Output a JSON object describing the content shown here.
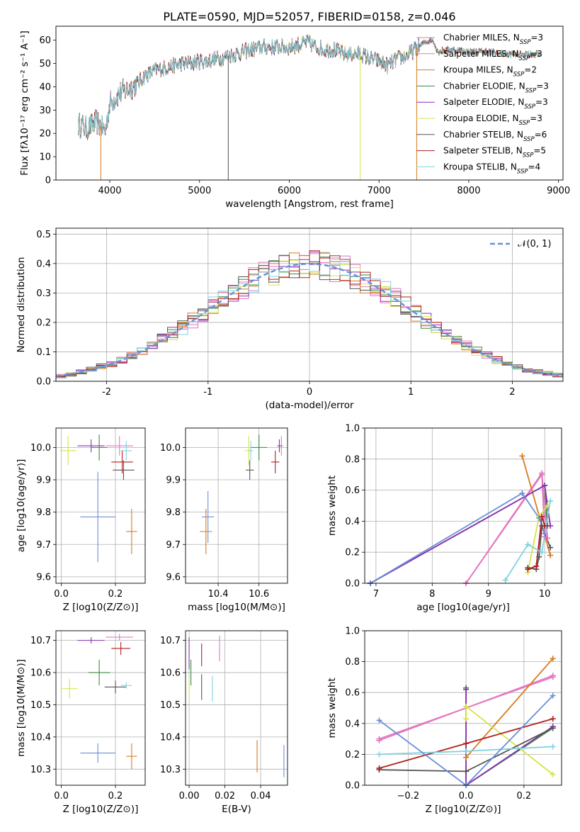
{
  "title": "PLATE=0590, MJD=52057, FIBERID=0158, z=0.046",
  "colors": {
    "Chabrier MILES": "#e377c2",
    "Salpeter MILES": "#e377c2",
    "Kroupa MILES": "#d97a1f",
    "Chabrier ELODIE": "#3a8a3a",
    "Salpeter ELODIE": "#8e2fb5",
    "Kroupa ELODIE": "#d5e34a",
    "Chabrier STELIB": "#555555",
    "Salpeter STELIB": "#b11e1e",
    "Kroupa STELIB": "#7fd3de",
    "normal": "#6a8fd8"
  },
  "chart_data": [
    {
      "type": "line",
      "id": "spectrum",
      "xlabel": "wavelength [Angstrom, rest frame]",
      "ylabel": "Flux [fλ10⁻¹⁷ erg cm⁻² s⁻¹ A⁻¹]",
      "xlim": [
        3400,
        9050
      ],
      "ylim": [
        0,
        66
      ],
      "xticks": [
        4000,
        5000,
        6000,
        7000,
        8000,
        9000
      ],
      "yticks": [
        0,
        10,
        20,
        30,
        40,
        50,
        60
      ],
      "grid": false,
      "legend_position": "right",
      "legend": [
        {
          "name": "Chabrier MILES",
          "nssp": "3"
        },
        {
          "name": "Salpeter MILES",
          "nssp": "3"
        },
        {
          "name": "Kroupa MILES",
          "nssp": "2"
        },
        {
          "name": "Chabrier ELODIE",
          "nssp": "3"
        },
        {
          "name": "Salpeter ELODIE",
          "nssp": "3"
        },
        {
          "name": "Kroupa ELODIE",
          "nssp": "3"
        },
        {
          "name": "Chabrier STELIB",
          "nssp": "6"
        },
        {
          "name": "Salpeter STELIB",
          "nssp": "5"
        },
        {
          "name": "Kroupa STELIB",
          "nssp": "4"
        }
      ],
      "continuum": [
        [
          3650,
          24
        ],
        [
          3750,
          22
        ],
        [
          3850,
          25
        ],
        [
          3950,
          21
        ],
        [
          4000,
          33
        ],
        [
          4100,
          37
        ],
        [
          4200,
          39
        ],
        [
          4300,
          41
        ],
        [
          4400,
          45
        ],
        [
          4500,
          47
        ],
        [
          4600,
          48
        ],
        [
          4700,
          49
        ],
        [
          4800,
          50
        ],
        [
          4900,
          50
        ],
        [
          5000,
          51
        ],
        [
          5100,
          51
        ],
        [
          5200,
          52
        ],
        [
          5300,
          53
        ],
        [
          5400,
          54
        ],
        [
          5500,
          55
        ],
        [
          5600,
          56
        ],
        [
          5700,
          57
        ],
        [
          5800,
          57
        ],
        [
          5900,
          57
        ],
        [
          6000,
          57
        ],
        [
          6100,
          58
        ],
        [
          6200,
          59
        ],
        [
          6300,
          57
        ],
        [
          6400,
          56
        ],
        [
          6500,
          56
        ],
        [
          6600,
          54
        ],
        [
          6700,
          54
        ],
        [
          6800,
          54
        ],
        [
          6900,
          52
        ],
        [
          7000,
          51
        ],
        [
          7100,
          49
        ],
        [
          7200,
          52
        ],
        [
          7300,
          53
        ],
        [
          7400,
          56
        ],
        [
          7500,
          59
        ],
        [
          7600,
          60
        ],
        [
          7650,
          55
        ],
        [
          7800,
          56
        ],
        [
          8000,
          55
        ],
        [
          8200,
          55
        ],
        [
          8400,
          54
        ],
        [
          8600,
          54
        ],
        [
          8800,
          54
        ]
      ],
      "spikes": [
        {
          "x": 3900,
          "series": "Kroupa MILES"
        },
        {
          "x": 5320,
          "series": "Chabrier STELIB"
        },
        {
          "x": 6790,
          "series": "Kroupa ELODIE"
        },
        {
          "x": 7420,
          "series": "Kroupa MILES"
        }
      ]
    },
    {
      "type": "step",
      "id": "residuals",
      "xlabel": "(data-model)/error",
      "ylabel": "Normed distribution",
      "xlim": [
        -2.5,
        2.5
      ],
      "ylim": [
        0,
        0.52
      ],
      "xticks": [
        -2,
        -1,
        0,
        1,
        2
      ],
      "yticks": [
        0.0,
        0.1,
        0.2,
        0.3,
        0.4,
        0.5
      ],
      "grid": true,
      "legend_position": "top-right",
      "legend": [
        {
          "name": "𝒩(0, 1)",
          "style": "dashed"
        }
      ],
      "bin_width": 0.1,
      "normal_pdf": {
        "mean": 0,
        "sigma": 1
      }
    },
    {
      "type": "scatter",
      "id": "z-age",
      "xlabel": "Z [log10(Z/Z⊙)]",
      "ylabel": "age [log10(age/yr)]",
      "xlim": [
        -0.02,
        0.31
      ],
      "ylim": [
        9.58,
        10.06
      ],
      "xticks": [
        0.0,
        0.2
      ],
      "yticks": [
        9.6,
        9.7,
        9.8,
        9.9,
        10.0
      ],
      "grid": true,
      "points": [
        {
          "series": "Salpeter MILES",
          "x": 0.215,
          "y": 10.005,
          "xerr": 0.05,
          "yerr": 0.03
        },
        {
          "series": "Kroupa MILES",
          "x": 0.26,
          "y": 9.74,
          "xerr": 0.02,
          "yerr": 0.07
        },
        {
          "series": "Chabrier ELODIE",
          "x": 0.14,
          "y": 10.0,
          "xerr": 0.03,
          "yerr": 0.04
        },
        {
          "series": "Salpeter ELODIE",
          "x": 0.11,
          "y": 10.005,
          "xerr": 0.05,
          "yerr": 0.02
        },
        {
          "series": "Kroupa ELODIE",
          "x": 0.025,
          "y": 9.99,
          "xerr": 0.03,
          "yerr": 0.045
        },
        {
          "series": "Chabrier STELIB",
          "x": 0.23,
          "y": 9.93,
          "xerr": 0.04,
          "yerr": 0.03
        },
        {
          "series": "Salpeter STELIB",
          "x": 0.225,
          "y": 9.955,
          "xerr": 0.04,
          "yerr": 0.035
        },
        {
          "series": "Kroupa STELIB",
          "x": 0.24,
          "y": 9.99,
          "xerr": 0.02,
          "yerr": 0.03
        },
        {
          "series": "normal",
          "x": 0.135,
          "y": 9.785,
          "xerr": 0.065,
          "yerr": 0.14
        }
      ]
    },
    {
      "type": "scatter",
      "id": "mass-age",
      "xlabel": "mass [log10(M/M⊙)]",
      "ylabel": "",
      "xlim": [
        10.24,
        10.74
      ],
      "ylim": [
        9.58,
        10.06
      ],
      "xticks": [
        10.4,
        10.6
      ],
      "yticks": [
        9.6,
        9.7,
        9.8,
        9.9,
        10.0
      ],
      "grid": true,
      "points": [
        {
          "series": "Salpeter MILES",
          "x": 10.71,
          "y": 10.005,
          "xerr": 0.01,
          "yerr": 0.03
        },
        {
          "series": "Kroupa MILES",
          "x": 10.34,
          "y": 9.74,
          "xerr": 0.03,
          "yerr": 0.07
        },
        {
          "series": "Chabrier ELODIE",
          "x": 10.6,
          "y": 10.0,
          "xerr": 0.04,
          "yerr": 0.04
        },
        {
          "series": "Salpeter ELODIE",
          "x": 10.7,
          "y": 10.005,
          "xerr": 0.01,
          "yerr": 0.02
        },
        {
          "series": "Kroupa ELODIE",
          "x": 10.55,
          "y": 9.99,
          "xerr": 0.02,
          "yerr": 0.045
        },
        {
          "series": "Chabrier STELIB",
          "x": 10.555,
          "y": 9.93,
          "xerr": 0.02,
          "yerr": 0.03
        },
        {
          "series": "Salpeter STELIB",
          "x": 10.68,
          "y": 9.955,
          "xerr": 0.02,
          "yerr": 0.035
        },
        {
          "series": "Kroupa STELIB",
          "x": 10.56,
          "y": 9.99,
          "xerr": 0.01,
          "yerr": 0.03
        },
        {
          "series": "normal",
          "x": 10.35,
          "y": 9.785,
          "xerr": 0.03,
          "yerr": 0.08
        }
      ]
    },
    {
      "type": "line",
      "id": "age-weight",
      "xlabel": "age [log10(age/yr)]",
      "ylabel": "mass weight",
      "xlim": [
        6.8,
        10.3
      ],
      "ylim": [
        0,
        1.0
      ],
      "xticks": [
        7,
        8,
        9,
        10
      ],
      "yticks": [
        0.0,
        0.2,
        0.4,
        0.6,
        0.8,
        1.0
      ],
      "grid": true,
      "series": [
        {
          "name": "Chabrier MILES",
          "points": [
            [
              8.6,
              0.0
            ],
            [
              9.95,
              0.7
            ],
            [
              10.0,
              0.3
            ]
          ]
        },
        {
          "name": "Salpeter MILES",
          "points": [
            [
              8.6,
              0.0
            ],
            [
              9.95,
              0.71
            ],
            [
              10.05,
              0.29
            ]
          ]
        },
        {
          "name": "Kroupa MILES",
          "points": [
            [
              9.6,
              0.82
            ],
            [
              10.1,
              0.18
            ]
          ]
        },
        {
          "name": "Chabrier ELODIE",
          "points": [
            [
              6.9,
              0.0
            ],
            [
              10.0,
              0.63
            ],
            [
              10.05,
              0.37
            ]
          ]
        },
        {
          "name": "Salpeter ELODIE",
          "points": [
            [
              6.9,
              0.0
            ],
            [
              10.0,
              0.63
            ],
            [
              10.1,
              0.37
            ]
          ]
        },
        {
          "name": "Kroupa ELODIE",
          "points": [
            [
              9.7,
              0.07
            ],
            [
              9.9,
              0.43
            ],
            [
              10.05,
              0.5
            ]
          ]
        },
        {
          "name": "Chabrier STELIB",
          "points": [
            [
              9.7,
              0.1
            ],
            [
              9.85,
              0.09
            ],
            [
              9.9,
              0.17
            ],
            [
              9.95,
              0.37
            ],
            [
              10.1,
              0.23
            ]
          ]
        },
        {
          "name": "Salpeter STELIB",
          "points": [
            [
              9.7,
              0.09
            ],
            [
              9.85,
              0.11
            ],
            [
              9.95,
              0.43
            ],
            [
              10.0,
              0.37
            ]
          ]
        },
        {
          "name": "Kroupa STELIB",
          "points": [
            [
              9.3,
              0.02
            ],
            [
              9.7,
              0.25
            ],
            [
              9.95,
              0.2
            ],
            [
              10.1,
              0.53
            ]
          ]
        },
        {
          "name": "normal",
          "points": [
            [
              6.9,
              0.0
            ],
            [
              9.6,
              0.58
            ],
            [
              9.9,
              0.42
            ],
            [
              10.0,
              0.32
            ]
          ]
        }
      ]
    },
    {
      "type": "scatter",
      "id": "z-mass",
      "xlabel": "Z [log10(Z/Z⊙)]",
      "ylabel": "mass [log10(M/M⊙)]",
      "xlim": [
        -0.02,
        0.31
      ],
      "ylim": [
        10.25,
        10.73
      ],
      "xticks": [
        0.0,
        0.2
      ],
      "yticks": [
        10.3,
        10.4,
        10.5,
        10.6,
        10.7
      ],
      "grid": true,
      "points": [
        {
          "series": "Salpeter MILES",
          "x": 0.215,
          "y": 10.71,
          "xerr": 0.05,
          "yerr": 0.01
        },
        {
          "series": "Kroupa MILES",
          "x": 0.26,
          "y": 10.34,
          "xerr": 0.02,
          "yerr": 0.04
        },
        {
          "series": "Chabrier ELODIE",
          "x": 0.14,
          "y": 10.6,
          "xerr": 0.04,
          "yerr": 0.04
        },
        {
          "series": "Salpeter ELODIE",
          "x": 0.11,
          "y": 10.7,
          "xerr": 0.05,
          "yerr": 0.01
        },
        {
          "series": "Kroupa ELODIE",
          "x": 0.03,
          "y": 10.55,
          "xerr": 0.03,
          "yerr": 0.03
        },
        {
          "series": "Chabrier STELIB",
          "x": 0.2,
          "y": 10.555,
          "xerr": 0.04,
          "yerr": 0.02
        },
        {
          "series": "Salpeter STELIB",
          "x": 0.22,
          "y": 10.675,
          "xerr": 0.035,
          "yerr": 0.02
        },
        {
          "series": "Kroupa STELIB",
          "x": 0.24,
          "y": 10.56,
          "xerr": 0.02,
          "yerr": 0.01
        },
        {
          "series": "normal",
          "x": 0.135,
          "y": 10.35,
          "xerr": 0.065,
          "yerr": 0.03
        }
      ]
    },
    {
      "type": "scatter",
      "id": "ebv-mass",
      "xlabel": "E(B-V)",
      "ylabel": "",
      "xlim": [
        -0.002,
        0.055
      ],
      "ylim": [
        10.25,
        10.73
      ],
      "xticks": [
        0.0,
        0.02,
        0.04
      ],
      "yticks": [
        10.3,
        10.4,
        10.5,
        10.6,
        10.7
      ],
      "grid": true,
      "points": [
        {
          "series": "Salpeter MILES",
          "x": 0.017,
          "y": 10.675,
          "xerr": 0.0,
          "yerr": 0.04
        },
        {
          "series": "Kroupa MILES",
          "x": 0.038,
          "y": 10.34,
          "xerr": 0.0,
          "yerr": 0.05
        },
        {
          "series": "Chabrier ELODIE",
          "x": 0.001,
          "y": 10.6,
          "xerr": 0.0,
          "yerr": 0.04
        },
        {
          "series": "Salpeter ELODIE",
          "x": 0.0,
          "y": 10.66,
          "xerr": 0.0,
          "yerr": 0.05
        },
        {
          "series": "Kroupa ELODIE",
          "x": 0.0,
          "y": 10.55,
          "xerr": 0.0,
          "yerr": 0.03
        },
        {
          "series": "Chabrier STELIB",
          "x": 0.007,
          "y": 10.555,
          "xerr": 0.0,
          "yerr": 0.04
        },
        {
          "series": "Salpeter STELIB",
          "x": 0.007,
          "y": 10.655,
          "xerr": 0.0,
          "yerr": 0.035
        },
        {
          "series": "Kroupa STELIB",
          "x": 0.013,
          "y": 10.55,
          "xerr": 0.0,
          "yerr": 0.04
        },
        {
          "series": "normal",
          "x": 0.053,
          "y": 10.325,
          "xerr": 0.0,
          "yerr": 0.05
        }
      ]
    },
    {
      "type": "line",
      "id": "z-weight",
      "xlabel": "Z [log10(Z/Z⊙)]",
      "ylabel": "mass weight",
      "xlim": [
        -0.35,
        0.33
      ],
      "ylim": [
        0,
        1.0
      ],
      "xticks": [
        -0.2,
        0.0,
        0.2
      ],
      "yticks": [
        0.0,
        0.2,
        0.4,
        0.6,
        0.8,
        1.0
      ],
      "grid": true,
      "series": [
        {
          "name": "Chabrier MILES",
          "points": [
            [
              -0.3,
              0.29
            ],
            [
              0.3,
              0.71
            ]
          ]
        },
        {
          "name": "Salpeter MILES",
          "points": [
            [
              -0.3,
              0.3
            ],
            [
              0.3,
              0.7
            ]
          ]
        },
        {
          "name": "Kroupa MILES",
          "points": [
            [
              0.0,
              0.18
            ],
            [
              0.3,
              0.82
            ]
          ]
        },
        {
          "name": "Chabrier ELODIE",
          "points": [
            [
              0.0,
              0.63
            ],
            [
              0.0,
              0.0
            ],
            [
              0.3,
              0.37
            ]
          ]
        },
        {
          "name": "Salpeter ELODIE",
          "points": [
            [
              0.0,
              0.62
            ],
            [
              0.0,
              0.0
            ],
            [
              0.3,
              0.38
            ]
          ]
        },
        {
          "name": "Kroupa ELODIE",
          "points": [
            [
              0.0,
              0.43
            ],
            [
              0.0,
              0.51
            ],
            [
              0.3,
              0.07
            ]
          ]
        },
        {
          "name": "Chabrier STELIB",
          "points": [
            [
              -0.3,
              0.1
            ],
            [
              0.0,
              0.09
            ],
            [
              0.3,
              0.37
            ]
          ]
        },
        {
          "name": "Salpeter STELIB",
          "points": [
            [
              -0.3,
              0.11
            ],
            [
              0.0,
              0.27
            ],
            [
              0.3,
              0.43
            ]
          ]
        },
        {
          "name": "Kroupa STELIB",
          "points": [
            [
              -0.3,
              0.2
            ],
            [
              0.0,
              0.22
            ],
            [
              0.3,
              0.25
            ]
          ]
        },
        {
          "name": "normal",
          "points": [
            [
              -0.3,
              0.42
            ],
            [
              0.0,
              0.0
            ],
            [
              0.3,
              0.58
            ]
          ]
        }
      ]
    }
  ]
}
